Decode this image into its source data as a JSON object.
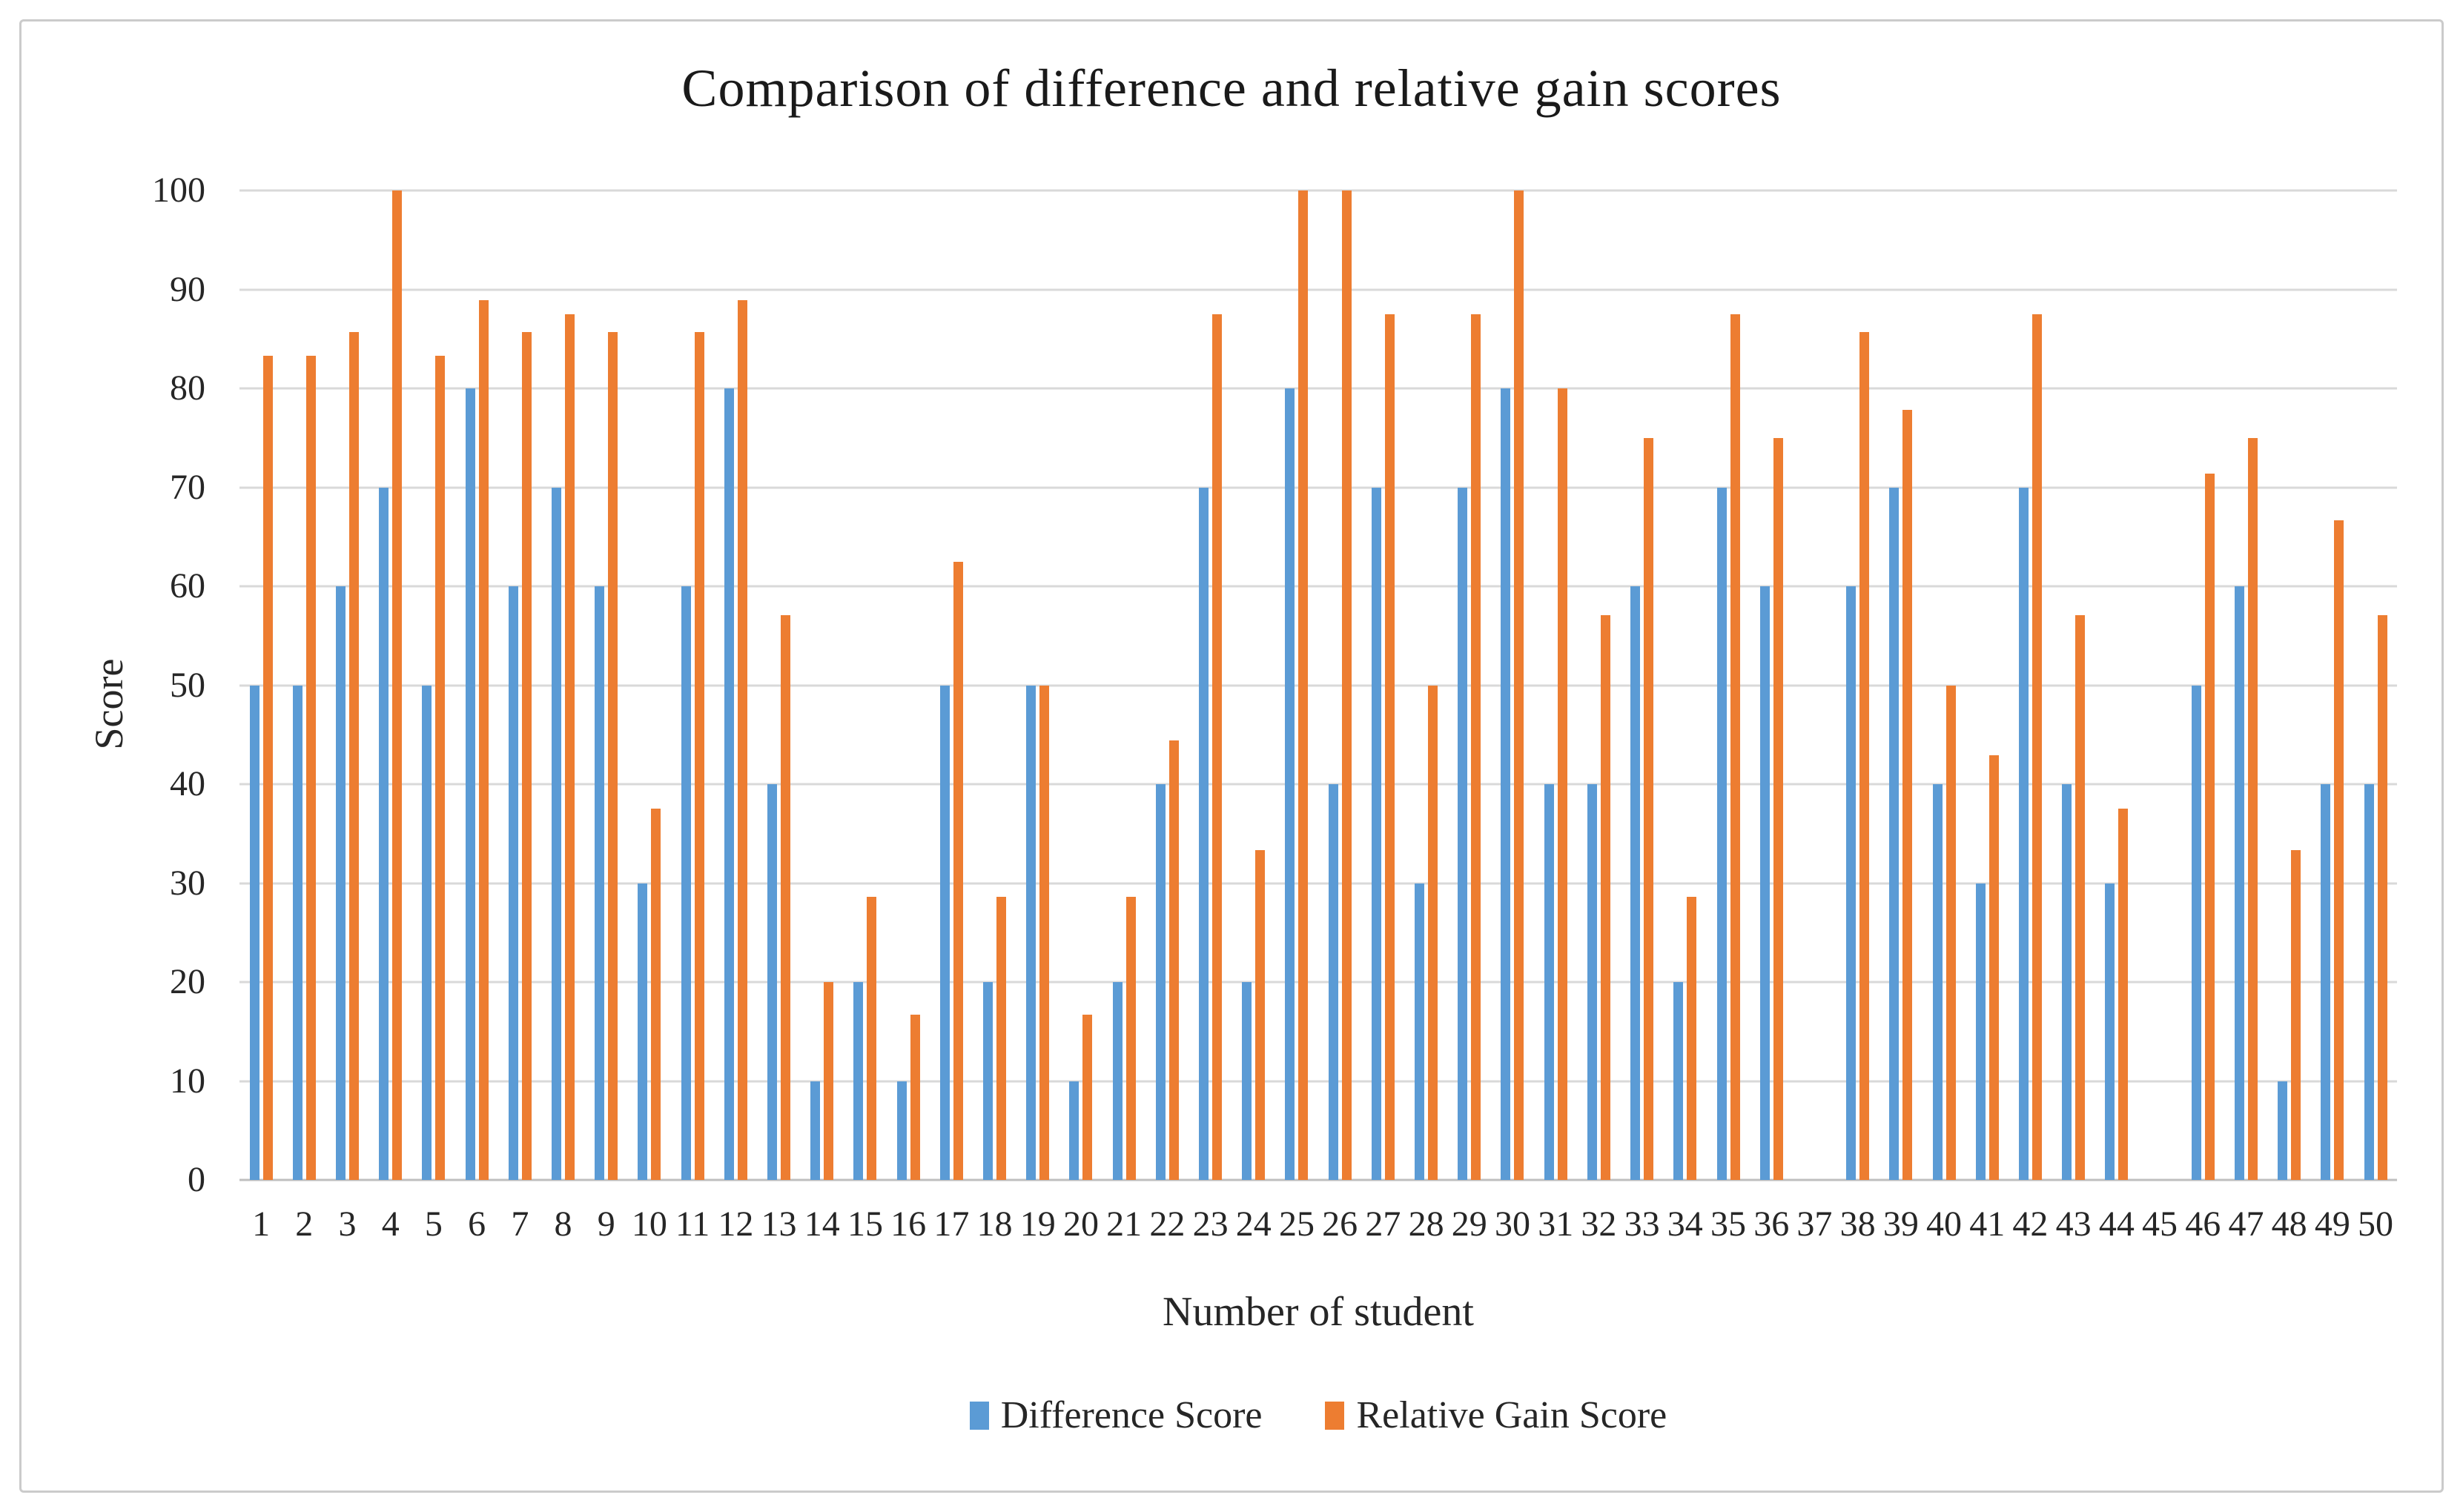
{
  "colors": {
    "difference_series": "#5B9BD5",
    "relative_gain_series": "#ED7D31",
    "gridline": "#D9D9D9",
    "axis_line": "#BFBFBF",
    "frame_border": "#CBCBCB",
    "text": "#262626"
  },
  "chart_data": {
    "type": "bar",
    "title": "Comparison of difference and relative gain scores",
    "xlabel": "Number of student",
    "ylabel": "Score",
    "ylim": [
      0,
      100
    ],
    "ytick_interval": 10,
    "grid": true,
    "legend_position": "bottom",
    "categories": [
      "1",
      "2",
      "3",
      "4",
      "5",
      "6",
      "7",
      "8",
      "9",
      "10",
      "11",
      "12",
      "13",
      "14",
      "15",
      "16",
      "17",
      "18",
      "19",
      "20",
      "21",
      "22",
      "23",
      "24",
      "25",
      "26",
      "27",
      "28",
      "29",
      "30",
      "31",
      "32",
      "33",
      "34",
      "35",
      "36",
      "37",
      "38",
      "39",
      "40",
      "41",
      "42",
      "43",
      "44",
      "45",
      "46",
      "47",
      "48",
      "49",
      "50"
    ],
    "series": [
      {
        "name": "Difference Score",
        "color": "#5B9BD5",
        "values": [
          50,
          50,
          60,
          70,
          50,
          80,
          60,
          70,
          60,
          30,
          60,
          80,
          40,
          10,
          20,
          10,
          50,
          20,
          50,
          10,
          20,
          40,
          70,
          20,
          80,
          40,
          70,
          30,
          70,
          80,
          40,
          40,
          60,
          20,
          70,
          60,
          null,
          60,
          70,
          40,
          30,
          70,
          40,
          30,
          null,
          50,
          60,
          10,
          40,
          40
        ]
      },
      {
        "name": "Relative Gain Score",
        "color": "#ED7D31",
        "values": [
          83.3,
          83.3,
          85.7,
          100,
          83.3,
          88.9,
          85.7,
          87.5,
          85.7,
          37.5,
          85.7,
          88.9,
          57.1,
          20,
          28.6,
          16.7,
          62.5,
          28.6,
          50,
          16.7,
          28.6,
          44.4,
          87.5,
          33.3,
          100,
          100,
          87.5,
          50,
          87.5,
          100,
          80,
          57.1,
          75,
          28.6,
          87.5,
          75,
          null,
          85.7,
          77.8,
          50,
          42.9,
          87.5,
          57.1,
          37.5,
          null,
          71.4,
          75,
          33.3,
          66.7,
          57.1
        ]
      }
    ]
  }
}
